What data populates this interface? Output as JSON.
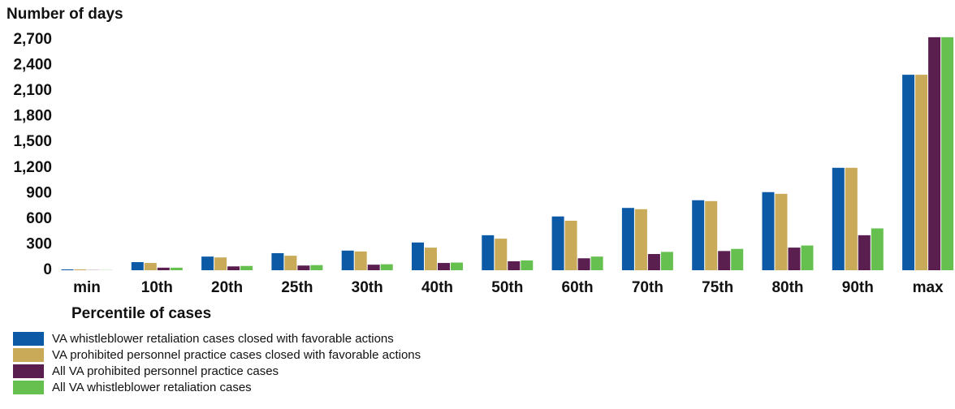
{
  "chart_data": {
    "type": "bar",
    "y_label": "Number of days",
    "x_label": "Percentile of cases",
    "categories": [
      "min",
      "10th",
      "20th",
      "25th",
      "30th",
      "40th",
      "50th",
      "60th",
      "70th",
      "75th",
      "80th",
      "90th",
      "max"
    ],
    "series": [
      {
        "name": "VA whistleblower retaliation cases closed with favorable actions",
        "color": "#0c5aa6",
        "values": [
          10,
          95,
          160,
          200,
          230,
          325,
          410,
          630,
          730,
          820,
          915,
          1200,
          2290
        ]
      },
      {
        "name": "VA prohibited personnel practice cases closed with favorable actions",
        "color": "#c9aa58",
        "values": [
          10,
          85,
          150,
          170,
          220,
          265,
          370,
          580,
          715,
          810,
          895,
          1200,
          2290
        ]
      },
      {
        "name": "All VA prohibited personnel practice cases",
        "color": "#5a1e4f",
        "values": [
          2,
          30,
          45,
          55,
          65,
          85,
          105,
          140,
          190,
          225,
          265,
          410,
          2730
        ]
      },
      {
        "name": "All VA whistleblower retaliation cases",
        "color": "#66c04f",
        "values": [
          2,
          30,
          50,
          60,
          70,
          90,
          115,
          160,
          215,
          250,
          290,
          490,
          2730
        ]
      }
    ],
    "ylim": [
      0,
      2700
    ],
    "yticks": [
      0,
      300,
      600,
      900,
      {
        "value": 1200,
        "label": "1,200"
      },
      {
        "value": 1500,
        "label": "1,500"
      },
      {
        "value": 1800,
        "label": "1,800"
      },
      {
        "value": 2100,
        "label": "2,100"
      },
      {
        "value": 2400,
        "label": "2,400"
      },
      {
        "value": 2700,
        "label": "2,700"
      }
    ],
    "legend": "bottom-left"
  }
}
